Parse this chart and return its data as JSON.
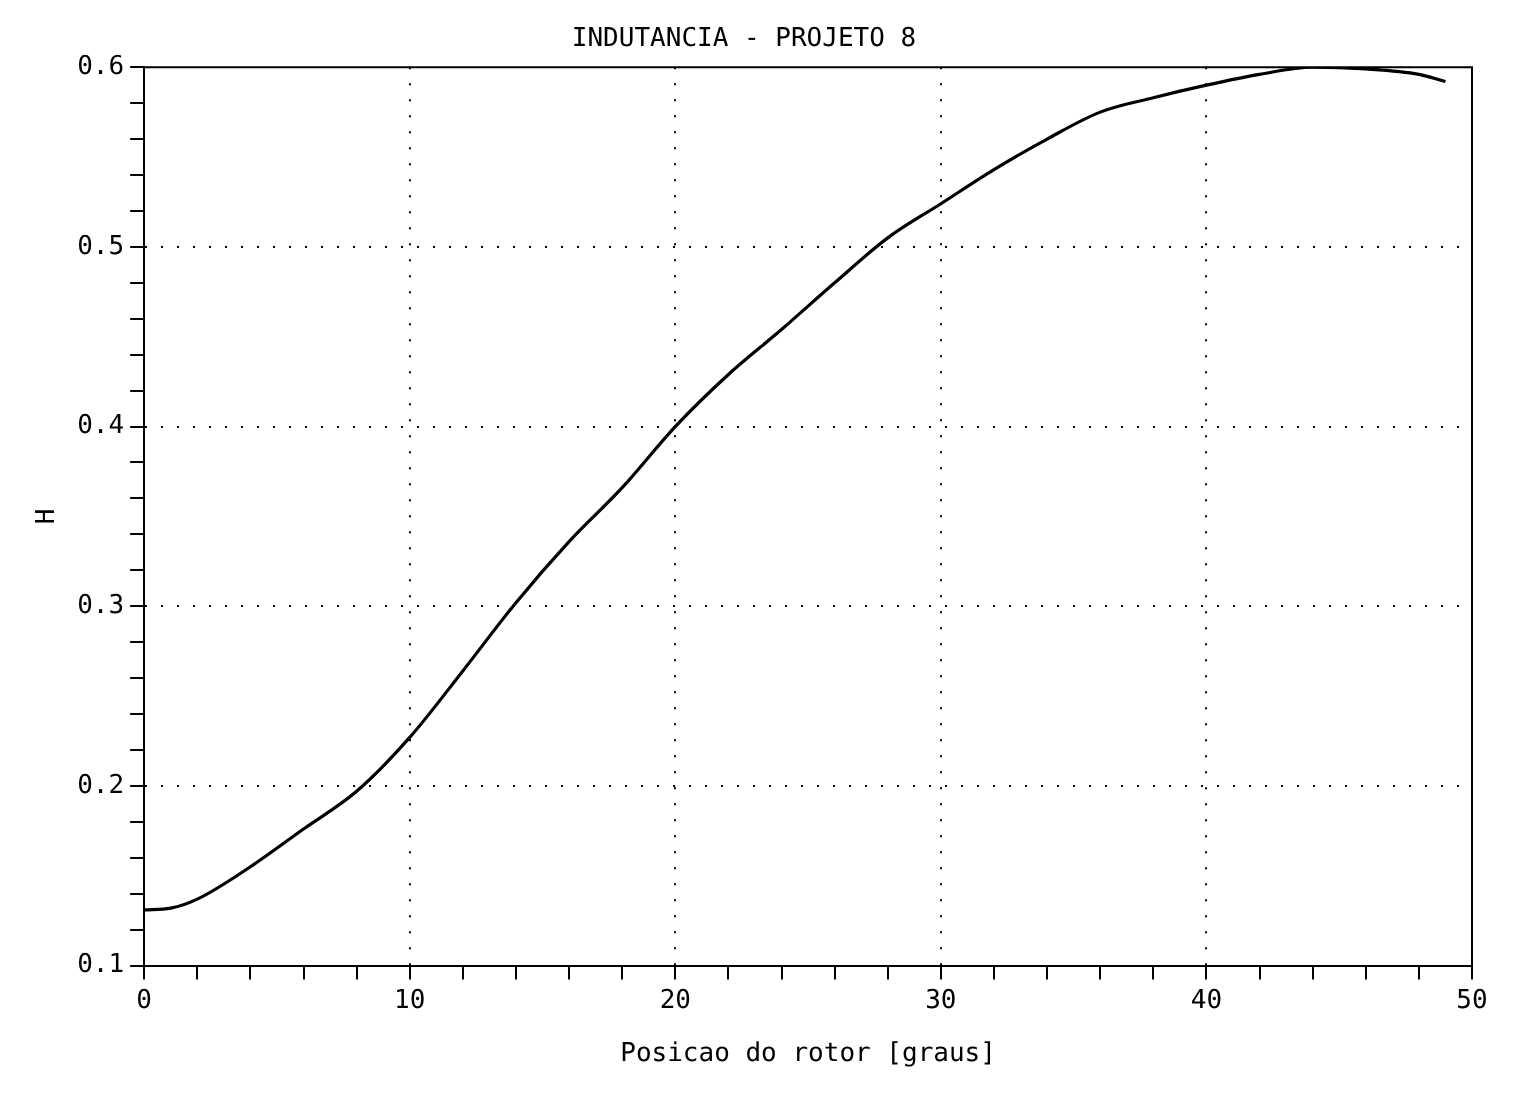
{
  "chart_data": {
    "type": "line",
    "title": "INDUTANCIA - PROJETO 8",
    "xlabel": "Posicao do rotor [graus]",
    "ylabel": "H",
    "xlim": [
      0,
      50
    ],
    "ylim": [
      0.1,
      0.6
    ],
    "xticks": [
      0,
      {
        "value": 2,
        "label": null
      },
      {
        "value": 4,
        "label": null
      },
      {
        "value": 6,
        "label": null
      },
      {
        "value": 8,
        "label": null
      },
      10,
      {
        "value": 12,
        "label": null
      },
      {
        "value": 14,
        "label": null
      },
      {
        "value": 16,
        "label": null
      },
      {
        "value": 18,
        "label": null
      },
      20,
      {
        "value": 22,
        "label": null
      },
      {
        "value": 24,
        "label": null
      },
      {
        "value": 26,
        "label": null
      },
      {
        "value": 28,
        "label": null
      },
      30,
      {
        "value": 32,
        "label": null
      },
      {
        "value": 34,
        "label": null
      },
      {
        "value": 36,
        "label": null
      },
      {
        "value": 38,
        "label": null
      },
      40,
      {
        "value": 42,
        "label": null
      },
      {
        "value": 44,
        "label": null
      },
      {
        "value": 46,
        "label": null
      },
      {
        "value": 48,
        "label": null
      },
      50
    ],
    "yticks": [
      {
        "value": 0.1,
        "label": "0.1"
      },
      {
        "value": 0.12,
        "label": null
      },
      {
        "value": 0.14,
        "label": null
      },
      {
        "value": 0.16,
        "label": null
      },
      {
        "value": 0.18,
        "label": null
      },
      {
        "value": 0.2,
        "label": "0.2"
      },
      {
        "value": 0.22,
        "label": null
      },
      {
        "value": 0.24,
        "label": null
      },
      {
        "value": 0.26,
        "label": null
      },
      {
        "value": 0.28,
        "label": null
      },
      {
        "value": 0.3,
        "label": "0.3"
      },
      {
        "value": 0.32,
        "label": null
      },
      {
        "value": 0.34,
        "label": null
      },
      {
        "value": 0.36,
        "label": null
      },
      {
        "value": 0.38,
        "label": null
      },
      {
        "value": 0.4,
        "label": "0.4"
      },
      {
        "value": 0.42,
        "label": null
      },
      {
        "value": 0.44,
        "label": null
      },
      {
        "value": 0.46,
        "label": null
      },
      {
        "value": 0.48,
        "label": null
      },
      {
        "value": 0.5,
        "label": "0.5"
      },
      {
        "value": 0.52,
        "label": null
      },
      {
        "value": 0.54,
        "label": null
      },
      {
        "value": 0.56,
        "label": null
      },
      {
        "value": 0.58,
        "label": null
      },
      {
        "value": 0.6,
        "label": "0.6"
      }
    ],
    "grid": true,
    "marker": "none",
    "line_style": "solid",
    "legend": false,
    "x": [
      0,
      1,
      2,
      4,
      6,
      8,
      10,
      12,
      14,
      16,
      18,
      20,
      22,
      24,
      26,
      28,
      30,
      32,
      34,
      36,
      38,
      40,
      42,
      44,
      46,
      48,
      49
    ],
    "series": [
      {
        "color": "#000000",
        "values": [
          0.131,
          0.132,
          0.137,
          0.155,
          0.176,
          0.197,
          0.227,
          0.264,
          0.302,
          0.336,
          0.366,
          0.4,
          0.429,
          0.454,
          0.48,
          0.505,
          0.524,
          0.543,
          0.56,
          0.575,
          0.583,
          0.59,
          0.596,
          0.6,
          0.599,
          0.596,
          0.592
        ]
      }
    ]
  }
}
